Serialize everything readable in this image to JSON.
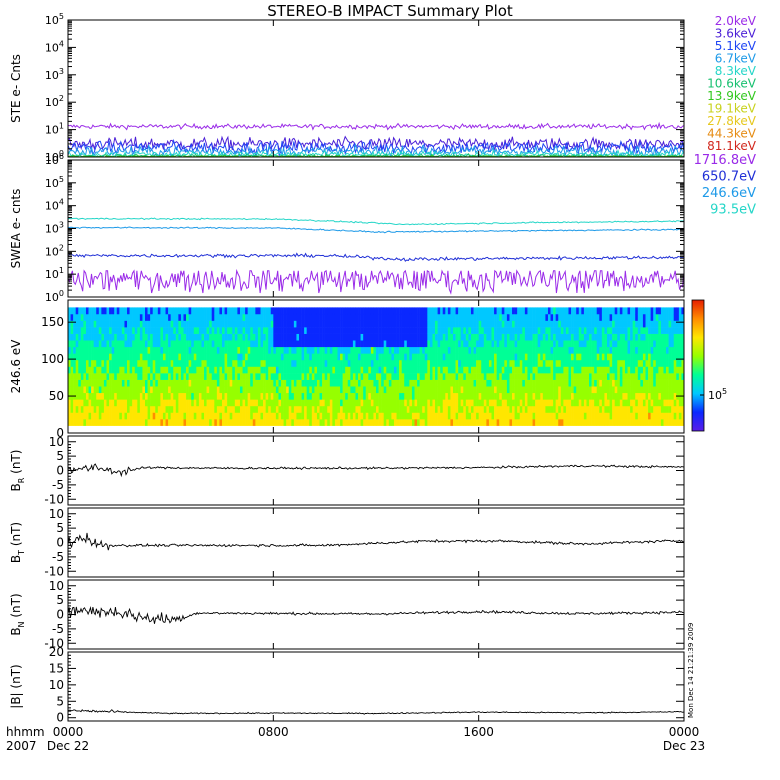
{
  "chart_data": {
    "type": "line",
    "title": "STEREO-B IMPACT Summary Plot",
    "x": {
      "range_hours": [
        0,
        24
      ],
      "tick_hours": [
        0,
        8,
        16,
        24
      ],
      "tick_labels": [
        "0000",
        "0800",
        "1600",
        "0000"
      ],
      "date_labels": [
        {
          "hour": 0,
          "label": "Dec 22"
        },
        {
          "hour": 24,
          "label": "Dec 23"
        }
      ],
      "left_label_line1": "hhmm",
      "left_label_line2": "2007"
    },
    "side_stamp": "Mon Dec 14 21:21:39 2009",
    "panels": [
      {
        "id": "ste",
        "ylabel": "STE e- Cnts",
        "scale": "log",
        "ylim": [
          1,
          100000
        ],
        "tick_exponents": [
          0,
          1,
          2,
          3,
          4,
          5
        ],
        "legend_placement": "right",
        "series": [
          {
            "name": "2.0keV",
            "color": "#9A2BE8",
            "level": 13,
            "noise": 0.06,
            "lo": 9,
            "hi": 17
          },
          {
            "name": "3.6keV",
            "color": "#4B1FD6",
            "level": 3.0,
            "noise": 0.16,
            "lo": 1.2,
            "hi": 5.5
          },
          {
            "name": "5.1keV",
            "color": "#1F45F5",
            "level": 2.2,
            "noise": 0.16,
            "lo": 1.0,
            "hi": 4.0
          },
          {
            "name": "6.7keV",
            "color": "#1E9AE8",
            "level": 1.6,
            "noise": 0.13,
            "lo": 1.0,
            "hi": 2.8
          },
          {
            "name": "8.3keV",
            "color": "#25D6C8",
            "level": 1.25,
            "noise": 0.07,
            "lo": 1.0,
            "hi": 1.8
          },
          {
            "name": "10.6keV",
            "color": "#18C070",
            "level": 1.1,
            "noise": 0.04,
            "lo": 1.0,
            "hi": 1.5
          },
          {
            "name": "13.9keV",
            "color": "#32C81E",
            "level": 1.05,
            "noise": 0.02,
            "lo": 1.0,
            "hi": 1.3
          },
          {
            "name": "19.1keV",
            "color": "#C8D21E",
            "level": 1.0,
            "noise": 0.0,
            "lo": 1.0,
            "hi": 1.2
          },
          {
            "name": "27.8keV",
            "color": "#E6C81E",
            "level": 1.0,
            "noise": 0.0,
            "lo": 1.0,
            "hi": 1.2
          },
          {
            "name": "44.3keV",
            "color": "#E68C14",
            "level": 1.0,
            "noise": 0.0,
            "lo": 1.0,
            "hi": 1.2
          },
          {
            "name": "81.1keV",
            "color": "#D2281E",
            "level": 1.0,
            "noise": 0.0,
            "lo": 1.0,
            "hi": 1.2
          }
        ]
      },
      {
        "id": "swea",
        "ylabel": "SWEA e- cnts",
        "scale": "log",
        "ylim": [
          1,
          1000000
        ],
        "tick_exponents": [
          0,
          1,
          2,
          3,
          4,
          5,
          6
        ],
        "legend_placement": "right",
        "series": [
          {
            "name": "1716.8eV",
            "color": "#9A2BE8",
            "level": 6,
            "noise": 0.42,
            "lo": 1.5,
            "hi": 14
          },
          {
            "name": "650.7eV",
            "color": "#1F2FD6",
            "level": 55,
            "noise": 0.05,
            "profile": [
              [
                0,
                65
              ],
              [
                10,
                65
              ],
              [
                13,
                45
              ],
              [
                24,
                55
              ]
            ]
          },
          {
            "name": "246.6eV",
            "color": "#1E9AE8",
            "level": 1000,
            "noise": 0.02,
            "profile": [
              [
                0,
                1100
              ],
              [
                8,
                1050
              ],
              [
                12,
                700
              ],
              [
                18,
                800
              ],
              [
                24,
                900
              ]
            ]
          },
          {
            "name": "93.5eV",
            "color": "#25D6C8",
            "level": 2600,
            "noise": 0.02,
            "profile": [
              [
                0,
                2700
              ],
              [
                8,
                2600
              ],
              [
                13,
                1500
              ],
              [
                18,
                1800
              ],
              [
                24,
                2100
              ]
            ]
          }
        ]
      },
      {
        "id": "pad",
        "type": "heatmap",
        "ylabel": "246.6 eV",
        "ylim": [
          0,
          180
        ],
        "yticks": [
          0,
          50,
          100,
          150
        ],
        "colorbar_label_base": "10",
        "colorbar_label_exp": "5",
        "colorbar_colors": [
          "#5A1EE8",
          "#0A28FF",
          "#00C8FF",
          "#00FF96",
          "#96FF00",
          "#FFE600",
          "#FF8C00",
          "#E61E00"
        ]
      },
      {
        "id": "br",
        "ylabel_main": "B",
        "ylabel_sub": "R",
        "ylabel_unit": "(nT)",
        "ylim": [
          -12,
          12
        ],
        "yticks": [
          -10,
          -5,
          0,
          5,
          10
        ],
        "profile": [
          [
            0,
            0.5
          ],
          [
            1.2,
            0.8
          ],
          [
            2,
            -0.5
          ],
          [
            3,
            1
          ],
          [
            6,
            0.8
          ],
          [
            12,
            0.8
          ],
          [
            16,
            1
          ],
          [
            20,
            1.6
          ],
          [
            24,
            1.2
          ]
        ],
        "noise": 0.25,
        "early_noise": 1.0,
        "early_until": 2.5
      },
      {
        "id": "bt",
        "ylabel_main": "B",
        "ylabel_sub": "T",
        "ylabel_unit": "(nT)",
        "ylim": [
          -12,
          12
        ],
        "yticks": [
          -10,
          -5,
          0,
          5,
          10
        ],
        "profile": [
          [
            0,
            0
          ],
          [
            0.7,
            2
          ],
          [
            1.2,
            -1
          ],
          [
            4,
            -1
          ],
          [
            10,
            -1
          ],
          [
            14,
            0.5
          ],
          [
            17,
            0.5
          ],
          [
            20,
            -0.5
          ],
          [
            24,
            0.7
          ]
        ],
        "noise": 0.3,
        "early_noise": 1.4,
        "early_until": 1.6
      },
      {
        "id": "bn",
        "ylabel_main": "B",
        "ylabel_sub": "N",
        "ylabel_unit": "(nT)",
        "ylim": [
          -12,
          12
        ],
        "yticks": [
          -10,
          -5,
          0,
          5,
          10
        ],
        "profile": [
          [
            0,
            1.5
          ],
          [
            2,
            0.8
          ],
          [
            3,
            -1.2
          ],
          [
            4.3,
            -1.8
          ],
          [
            5,
            0.5
          ],
          [
            12,
            0.2
          ],
          [
            16,
            1
          ],
          [
            20,
            0.3
          ],
          [
            24,
            0.8
          ]
        ],
        "noise": 0.3,
        "early_noise": 1.5,
        "early_until": 4.5
      },
      {
        "id": "bmag",
        "ylabel": "|B| (nT)",
        "ylim": [
          -1,
          20
        ],
        "yticks": [
          0,
          5,
          10,
          15,
          20
        ],
        "profile": [
          [
            0,
            2.2
          ],
          [
            4,
            1.3
          ],
          [
            8,
            1.4
          ],
          [
            12,
            1.3
          ],
          [
            16,
            1.7
          ],
          [
            20,
            1.5
          ],
          [
            24,
            1.8
          ]
        ],
        "noise": 0.12,
        "early_noise": 0.35,
        "early_until": 2
      }
    ]
  }
}
